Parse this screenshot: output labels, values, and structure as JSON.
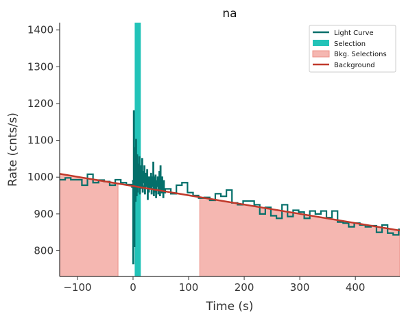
{
  "chart_data": {
    "type": "line",
    "title": "na",
    "xlabel": "Time (s)",
    "ylabel": "Rate (cnts/s)",
    "xlim": [
      -132,
      480
    ],
    "ylim": [
      730,
      1420
    ],
    "x_ticks": [
      -100,
      0,
      100,
      200,
      300,
      400
    ],
    "y_ticks": [
      800,
      900,
      1000,
      1100,
      1200,
      1300,
      1400
    ],
    "grid": false,
    "legend_position": "top-right",
    "legend": [
      "Light Curve",
      "Selection",
      "Bkg. Selections",
      "Background"
    ],
    "colors": {
      "light_curve": "#046f6a",
      "selection": "#22c3b8",
      "bkg_selection": "#f5b7b1",
      "bkg_edge": "#ec8f86",
      "background": "#c0392b",
      "axis": "#333333"
    },
    "selection_range": [
      3,
      14
    ],
    "bkg_selections": [
      [
        -132,
        -27
      ],
      [
        120,
        480
      ]
    ],
    "background_line": {
      "x": [
        -132,
        480
      ],
      "y": [
        1009,
        855
      ]
    },
    "light_curve": {
      "coarse_x": [
        -132,
        -122,
        -112,
        -102,
        -92,
        -82,
        -72,
        -62,
        -52,
        -42,
        -32,
        -22,
        -12,
        -2,
        8,
        18,
        28,
        38,
        48,
        58,
        68,
        78,
        88,
        98,
        108,
        118,
        128,
        138,
        148,
        158,
        168,
        178,
        188,
        198,
        208,
        218,
        228,
        238,
        248,
        258,
        268,
        278,
        288,
        298,
        308,
        318,
        328,
        338,
        348,
        358,
        368,
        378,
        388,
        398,
        408,
        418,
        428,
        438,
        448,
        458,
        468,
        478
      ],
      "coarse_y": [
        993,
        998,
        993,
        993,
        978,
        1008,
        985,
        992,
        988,
        978,
        993,
        985,
        980,
        973,
        978,
        975,
        968,
        965,
        958,
        968,
        955,
        978,
        985,
        958,
        950,
        943,
        945,
        937,
        955,
        948,
        965,
        930,
        925,
        935,
        935,
        925,
        900,
        918,
        895,
        888,
        925,
        893,
        910,
        905,
        888,
        908,
        900,
        908,
        890,
        908,
        878,
        875,
        865,
        875,
        870,
        865,
        868,
        850,
        870,
        848,
        843,
        858
      ],
      "fine_x": [
        -2,
        0,
        1,
        2,
        3,
        4,
        5,
        6,
        7,
        8,
        9,
        10,
        11,
        12,
        13,
        14,
        15,
        16,
        17,
        18,
        19,
        20,
        21,
        22,
        23,
        24,
        25,
        26,
        27,
        28,
        29,
        30,
        31,
        32,
        33,
        34,
        35,
        36,
        37,
        38,
        39,
        40,
        41,
        42,
        43,
        44,
        45,
        46,
        47,
        48,
        49,
        50,
        51,
        52,
        53,
        54,
        55,
        56,
        57
      ],
      "fine_y": [
        990,
        765,
        1180,
        812,
        1080,
        935,
        1102,
        950,
        1060,
        960,
        1035,
        980,
        1055,
        955,
        1030,
        970,
        1000,
        1050,
        960,
        1015,
        985,
        1030,
        955,
        990,
        1010,
        975,
        1020,
        940,
        1000,
        960,
        985,
        1000,
        970,
        1010,
        955,
        1000,
        975,
        1040,
        950,
        1000,
        960,
        1005,
        945,
        990,
        975,
        1000,
        955,
        985,
        1015,
        950,
        1030,
        980,
        960,
        1000,
        975,
        945,
        990,
        968,
        958
      ]
    }
  }
}
